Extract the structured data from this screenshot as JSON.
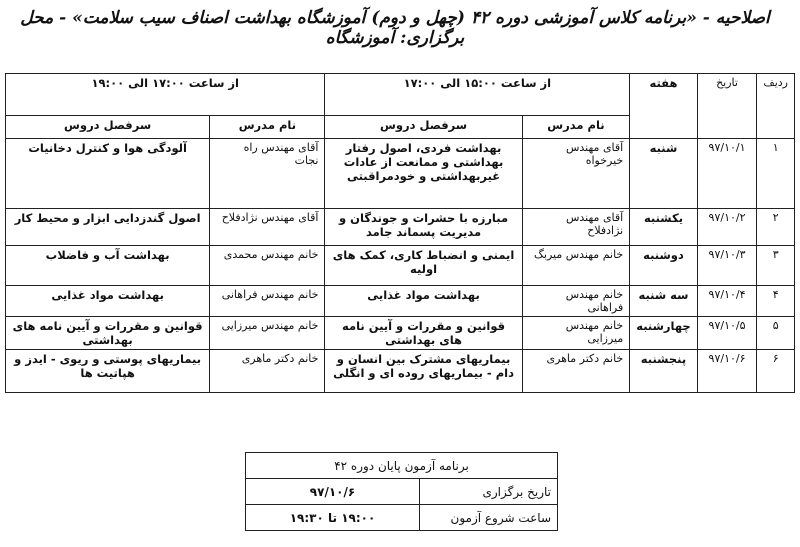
{
  "title": "اصلاحیه - «برنامه کلاس آموزشی دوره ۴۲ (چهل و دوم) آموزشگاه بهداشت اصناف سیب سلامت» - محل برگزاری: آموزشگاه",
  "table": {
    "headers": {
      "row": "ردیف",
      "date": "تاریخ",
      "day": "هفته",
      "slot1": "از ساعت ۱۵:۰۰ الی ۱۷:۰۰",
      "slot2": "از ساعت ۱۷:۰۰ الی ۱۹:۰۰",
      "teacher1": "نام مدرس",
      "topic1": "سرفصل دروس",
      "teacher2": "نام مدرس",
      "topic2": "سرفصل دروس"
    },
    "rows": [
      {
        "n": "۱",
        "date": "۹۷/۱۰/۱",
        "day": "شنبه",
        "t1": "آقای مهندس خیرخواه",
        "s1": "بهداشت فردی، اصول رفتار بهداشتی و ممانعت از عادات غیربهداشتی و خودمراقبتی",
        "t2": "آقای مهندس راه نجات",
        "s2": "آلودگی هوا و کنترل دخانیات"
      },
      {
        "n": "۲",
        "date": "۹۷/۱۰/۲",
        "day": "یکشنبه",
        "t1": "آقای مهندس نژادفلاح",
        "s1": "مبارزه با حشرات و جوندگان و مدیریت پسماند جامد",
        "t2": "آقای مهندس نژادفلاح",
        "s2": "اصول گندزدایی ابزار و محیط کار"
      },
      {
        "n": "۳",
        "date": "۹۷/۱۰/۳",
        "day": "دوشنبه",
        "t1": "خانم مهندس میربگ",
        "s1": "ایمنی و انضباط کاری، کمک های اولیه",
        "t2": "خانم مهندس محمدی",
        "s2": "بهداشت آب و فاضلاب"
      },
      {
        "n": "۴",
        "date": "۹۷/۱۰/۴",
        "day": "سه شنبه",
        "t1": "خانم مهندس فراهانی",
        "s1": "بهداشت مواد غذایی",
        "t2": "خانم مهندس فراهانی",
        "s2": "بهداشت مواد غذایی"
      },
      {
        "n": "۵",
        "date": "۹۷/۱۰/۵",
        "day": "چهارشنبه",
        "t1": "خانم مهندس میرزایی",
        "s1": "قوانین و مقررات و آیین نامه های بهداشتی",
        "t2": "خانم مهندس میرزایی",
        "s2": "قوانین و مقررات و آیین نامه های بهداشتی"
      },
      {
        "n": "۶",
        "date": "۹۷/۱۰/۶",
        "day": "پنجشنبه",
        "t1": "خانم دکتر ماهری",
        "s1": "بیماریهای مشترک بین انسان و دام - بیماریهای روده ای و انگلی",
        "t2": "خانم دکتر ماهری",
        "s2": "بیماریهای پوستی و ریوی - ایدز و هپاتیت ها"
      }
    ]
  },
  "exam": {
    "title": "برنامه آزمون پایان دوره ۴۲",
    "date_label": "تاریخ برگزاری",
    "date_value": "۹۷/۱۰/۶",
    "time_label": "ساعت شروع آزمون",
    "time_value": "۱۹:۰۰ تا ۱۹:۳۰"
  }
}
